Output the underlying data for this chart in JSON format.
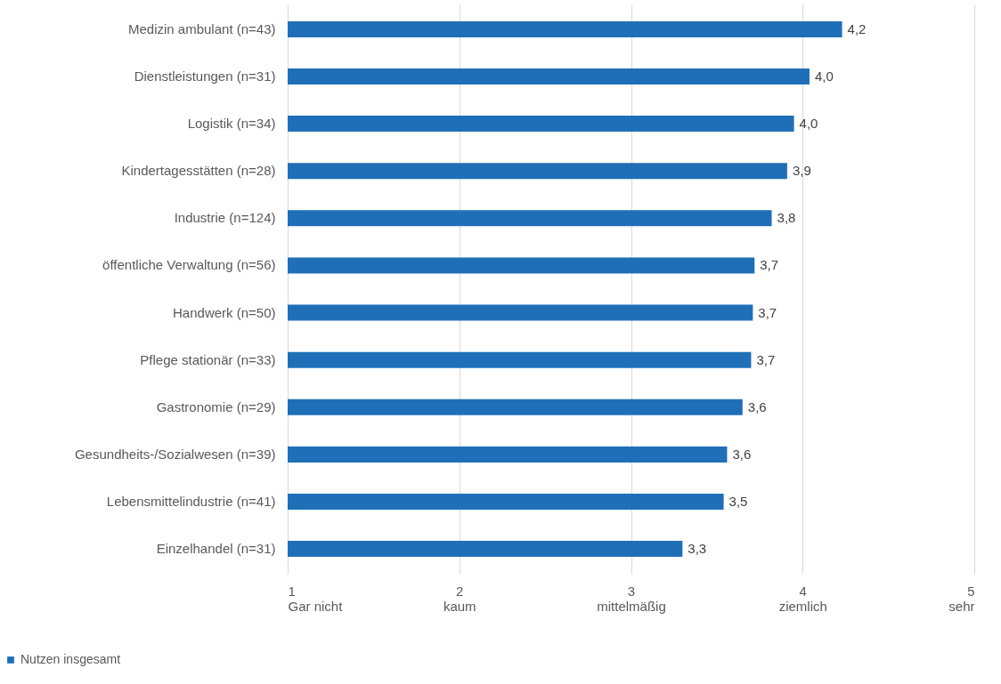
{
  "chart_data": {
    "type": "bar",
    "orientation": "horizontal",
    "categories": [
      "Medizin ambulant (n=43)",
      "Dienstleistungen (n=31)",
      "Logistik (n=34)",
      "Kindertagesstätten (n=28)",
      "Industrie (n=124)",
      "öffentliche Verwaltung (n=56)",
      "Handwerk (n=50)",
      "Pflege stationär (n=33)",
      "Gastronomie (n=29)",
      "Gesundheits-/Sozialwesen (n=39)",
      "Lebensmittelindustrie (n=41)",
      "Einzelhandel (n=31)"
    ],
    "series": [
      {
        "name": "Nutzen insgesamt",
        "color": "#1f6fb8",
        "values": [
          4.23,
          4.04,
          3.95,
          3.91,
          3.82,
          3.72,
          3.71,
          3.7,
          3.65,
          3.56,
          3.54,
          3.3
        ],
        "value_labels": [
          "4,2",
          "4,0",
          "4,0",
          "3,9",
          "3,8",
          "3,7",
          "3,7",
          "3,7",
          "3,6",
          "3,6",
          "3,5",
          "3,3"
        ]
      }
    ],
    "xlim": [
      1,
      5
    ],
    "xticks": [
      {
        "value": 1,
        "label": "1\nGar nicht"
      },
      {
        "value": 2,
        "label": "2\nkaum"
      },
      {
        "value": 3,
        "label": "3\nmittelmäßig"
      },
      {
        "value": 4,
        "label": "4\nziemlich"
      },
      {
        "value": 5,
        "label": "5\nsehr"
      }
    ],
    "grid": "x",
    "legend": "bottom left"
  }
}
